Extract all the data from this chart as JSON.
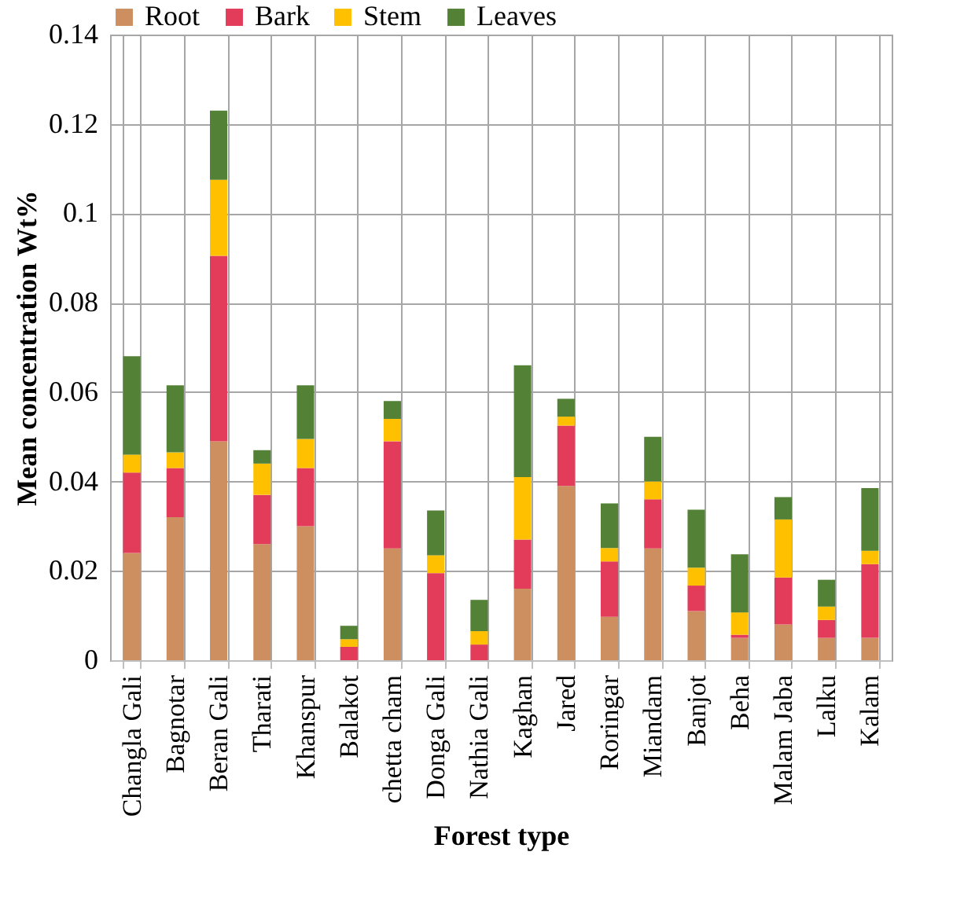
{
  "chart_data": {
    "type": "bar",
    "stacked": true,
    "xlabel": "Forest type",
    "ylabel": "Mean concentration Wt%",
    "categories": [
      "Changla Gali",
      "Bagnotar",
      "Beran Gali",
      "Tharati",
      "Khanspur",
      "Balakot",
      "chetta cham",
      "Donga Gali",
      "Nathia Gali",
      "Kaghan",
      "Jared",
      "Roringar",
      "Miandam",
      "Banjot",
      "Beha",
      "Malam Jaba",
      "Lalku",
      "Kalam"
    ],
    "series": [
      {
        "name": "Root",
        "color": "#cd8f5f",
        "values": [
          0.024,
          0.032,
          0.049,
          0.026,
          0.03,
          0,
          0.025,
          0,
          0,
          0.016,
          0.039,
          0.0097,
          0.025,
          0.011,
          0.005,
          0.008,
          0.005,
          0.005
        ]
      },
      {
        "name": "Bark",
        "color": "#e33b5a",
        "values": [
          0.018,
          0.011,
          0.0415,
          0.011,
          0.013,
          0.003,
          0.024,
          0.0195,
          0.0035,
          0.011,
          0.0135,
          0.0124,
          0.011,
          0.0057,
          0.0007,
          0.0105,
          0.004,
          0.0165
        ]
      },
      {
        "name": "Stem",
        "color": "#ffc000",
        "values": [
          0.004,
          0.0035,
          0.017,
          0.007,
          0.0065,
          0.0017,
          0.005,
          0.004,
          0.003,
          0.014,
          0.002,
          0.003,
          0.004,
          0.004,
          0.005,
          0.013,
          0.003,
          0.003
        ]
      },
      {
        "name": "Leaves",
        "color": "#538135",
        "values": [
          0.022,
          0.015,
          0.0155,
          0.003,
          0.012,
          0.003,
          0.004,
          0.01,
          0.007,
          0.025,
          0.004,
          0.01,
          0.01,
          0.013,
          0.013,
          0.005,
          0.006,
          0.014
        ]
      }
    ],
    "ylim": [
      0,
      0.14
    ],
    "yticks": [
      0,
      0.02,
      0.04,
      0.06,
      0.08,
      0.1,
      0.12,
      0.14
    ],
    "grid": true,
    "legend": "top"
  }
}
